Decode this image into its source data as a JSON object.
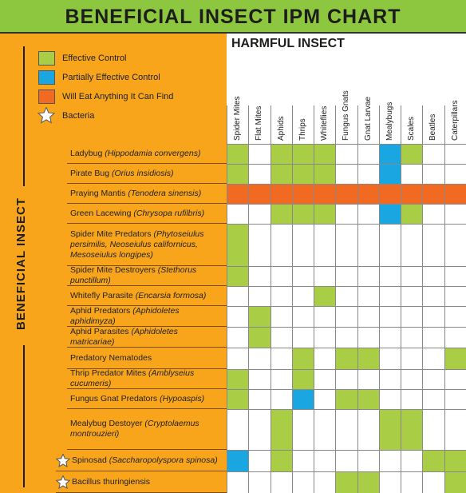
{
  "title": "BENEFICIAL INSECT IPM CHART",
  "header": "HARMFUL INSECT",
  "side_label": "BENEFICIAL INSECT",
  "legend": [
    {
      "label": "Effective Control",
      "color": "#a9cd45"
    },
    {
      "label": "Partially Effective Control",
      "color": "#1aa6e0"
    },
    {
      "label": "Will Eat Anything It Can Find",
      "color": "#f26a21"
    },
    {
      "label": "Bacteria"
    }
  ],
  "columns": [
    "Spider Mites",
    "Flat Mites",
    "Aphids",
    "Thrips",
    "Whiteflies",
    "Fungus Gnats",
    "Gnat Larvae",
    "Mealybugs",
    "Scales",
    "Beatles",
    "Caterpillars"
  ],
  "rows": [
    {
      "name": "Ladybug",
      "scientific": "(Hippodamia convergens)",
      "cells": [
        0,
        null,
        0,
        0,
        0,
        null,
        null,
        1,
        0,
        null,
        null
      ]
    },
    {
      "name": "Pirate Bug",
      "scientific": "(Orius insidiosis)",
      "cells": [
        0,
        null,
        0,
        0,
        0,
        null,
        null,
        1,
        null,
        null,
        null
      ]
    },
    {
      "name": "Praying Mantis",
      "scientific": "(Tenodera sinensis)",
      "cells": [
        2,
        2,
        2,
        2,
        2,
        2,
        2,
        2,
        2,
        2,
        2
      ]
    },
    {
      "name": "Green Lacewing",
      "scientific": "(Chrysopa rufilbris)",
      "cells": [
        null,
        null,
        0,
        0,
        0,
        null,
        null,
        1,
        0,
        null,
        null
      ]
    },
    {
      "name": "Spider Mite Predators",
      "scientific": "(Phytoseiulus persimilis, Neoseiulus californicus, Mesoseiulus longipes)",
      "cells": [
        0,
        null,
        null,
        null,
        null,
        null,
        null,
        null,
        null,
        null,
        null
      ]
    },
    {
      "name": "Spider Mite Destroyers",
      "scientific": "(Stethorus punctillum)",
      "cells": [
        0,
        null,
        null,
        null,
        null,
        null,
        null,
        null,
        null,
        null,
        null
      ]
    },
    {
      "name": "Whitefly Parasite",
      "scientific": "(Encarsia formosa)",
      "cells": [
        null,
        null,
        null,
        null,
        0,
        null,
        null,
        null,
        null,
        null,
        null
      ]
    },
    {
      "name": "Aphid Predators",
      "scientific": "(Aphidoletes aphidimyza)",
      "cells": [
        null,
        0,
        null,
        null,
        null,
        null,
        null,
        null,
        null,
        null,
        null
      ]
    },
    {
      "name": "Aphid Parasites",
      "scientific": "(Aphidoletes matricariae)",
      "cells": [
        null,
        0,
        null,
        null,
        null,
        null,
        null,
        null,
        null,
        null,
        null
      ]
    },
    {
      "name": "Predatory Nematodes",
      "cells": [
        null,
        null,
        null,
        0,
        null,
        0,
        0,
        null,
        null,
        null,
        0
      ]
    },
    {
      "name": "Thrip Predator Mites",
      "scientific": "(Amblyseius cucumeris)",
      "cells": [
        0,
        null,
        null,
        0,
        null,
        null,
        null,
        null,
        null,
        null,
        null
      ]
    },
    {
      "name": "Fungus Gnat Predators",
      "scientific": "(Hypoaspis)",
      "cells": [
        0,
        null,
        null,
        1,
        null,
        0,
        0,
        null,
        null,
        null,
        null
      ]
    },
    {
      "name": "Mealybug Destoyer",
      "scientific": "(Cryptolaemus montrouzieri)",
      "cells": [
        null,
        null,
        0,
        null,
        null,
        null,
        null,
        0,
        0,
        null,
        null
      ]
    },
    {
      "name": "Spinosad",
      "scientific": "(Saccharopolyspora spinosa)",
      "bacteria": true,
      "cells": [
        1,
        null,
        0,
        null,
        null,
        null,
        null,
        null,
        null,
        0,
        0
      ]
    },
    {
      "name": "Bacillus thuringiensis",
      "bacteria": true,
      "cells": [
        null,
        null,
        null,
        null,
        null,
        0,
        0,
        null,
        null,
        null,
        0
      ]
    }
  ]
}
